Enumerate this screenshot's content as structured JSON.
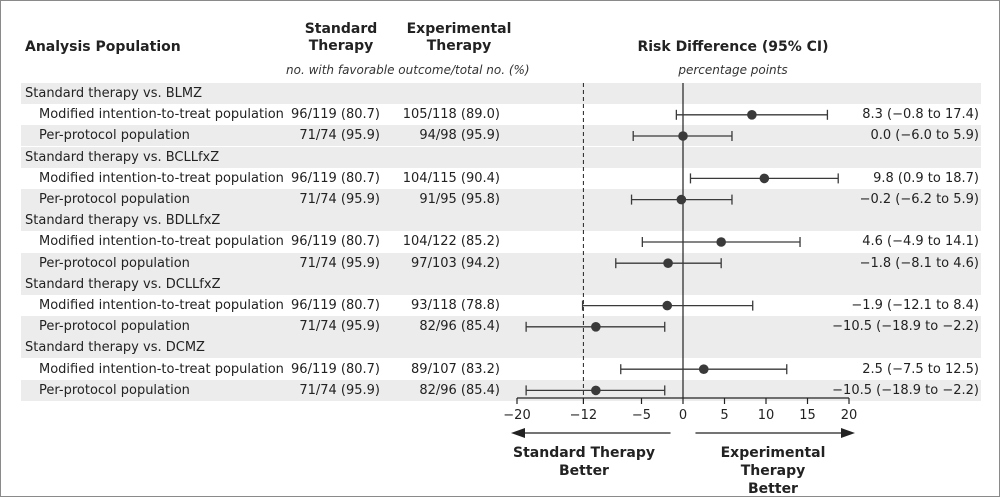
{
  "header": {
    "analysis_population": "Analysis Population",
    "standard_line1": "Standard",
    "standard_line2": "Therapy",
    "experimental_line1": "Experimental",
    "experimental_line2": "Therapy",
    "counts_note": "no. with favorable outcome/total no. (%)",
    "risk_diff_title": "Risk Difference (95% CI)",
    "risk_diff_units": "percentage points"
  },
  "footer": {
    "left_line1": "Standard Therapy",
    "left_line2": "Better",
    "right_line1": "Experimental Therapy",
    "right_line2": "Better"
  },
  "groups": [
    {
      "label": "Standard therapy vs. BLMZ",
      "rows": [
        {
          "label": "Modified intention-to-treat population",
          "standard": "96/119 (80.7)",
          "experimental": "105/118 (89.0)",
          "ci_text": "8.3 (−0.8 to 17.4)"
        },
        {
          "label": "Per-protocol population",
          "standard": "71/74 (95.9)",
          "experimental": "94/98 (95.9)",
          "ci_text": "0.0 (−6.0 to 5.9)"
        }
      ]
    },
    {
      "label": "Standard therapy vs. BCLLfxZ",
      "rows": [
        {
          "label": "Modified intention-to-treat population",
          "standard": "96/119 (80.7)",
          "experimental": "104/115 (90.4)",
          "ci_text": "9.8 (0.9 to 18.7)"
        },
        {
          "label": "Per-protocol population",
          "standard": "71/74 (95.9)",
          "experimental": "91/95 (95.8)",
          "ci_text": "−0.2 (−6.2 to 5.9)"
        }
      ]
    },
    {
      "label": "Standard therapy vs. BDLLfxZ",
      "rows": [
        {
          "label": "Modified intention-to-treat population",
          "standard": "96/119 (80.7)",
          "experimental": "104/122 (85.2)",
          "ci_text": "4.6 (−4.9 to 14.1)"
        },
        {
          "label": "Per-protocol population",
          "standard": "71/74 (95.9)",
          "experimental": "97/103 (94.2)",
          "ci_text": "−1.8 (−8.1 to 4.6)"
        }
      ]
    },
    {
      "label": "Standard therapy vs. DCLLfxZ",
      "rows": [
        {
          "label": "Modified intention-to-treat population",
          "standard": "96/119 (80.7)",
          "experimental": "93/118 (78.8)",
          "ci_text": "−1.9 (−12.1 to 8.4)"
        },
        {
          "label": "Per-protocol population",
          "standard": "71/74 (95.9)",
          "experimental": "82/96 (85.4)",
          "ci_text": "−10.5 (−18.9 to −2.2)"
        }
      ]
    },
    {
      "label": "Standard therapy vs. DCMZ",
      "rows": [
        {
          "label": "Modified intention-to-treat population",
          "standard": "96/119 (80.7)",
          "experimental": "89/107 (83.2)",
          "ci_text": "2.5 (−7.5 to 12.5)"
        },
        {
          "label": "Per-protocol population",
          "standard": "71/74 (95.9)",
          "experimental": "82/96 (85.4)",
          "ci_text": "−10.5 (−18.9 to −2.2)"
        }
      ]
    }
  ],
  "chart_data": {
    "type": "forest",
    "title": "Risk Difference (95% CI)",
    "xlabel": "percentage points",
    "xlim": [
      -20,
      20
    ],
    "ticks": [
      -20,
      -12,
      -5,
      0,
      5,
      10,
      15,
      20
    ],
    "tick_labels": [
      "−20",
      "−12",
      "−5",
      "0",
      "5",
      "10",
      "15",
      "20"
    ],
    "null_line": 0,
    "noninferiority_margin": -12,
    "series": [
      {
        "name": "BLMZ mITT",
        "estimate": 8.3,
        "lower": -0.8,
        "upper": 17.4
      },
      {
        "name": "BLMZ per-protocol",
        "estimate": 0.0,
        "lower": -6.0,
        "upper": 5.9
      },
      {
        "name": "BCLLfxZ mITT",
        "estimate": 9.8,
        "lower": 0.9,
        "upper": 18.7
      },
      {
        "name": "BCLLfxZ per-protocol",
        "estimate": -0.2,
        "lower": -6.2,
        "upper": 5.9
      },
      {
        "name": "BDLLfxZ mITT",
        "estimate": 4.6,
        "lower": -4.9,
        "upper": 14.1
      },
      {
        "name": "BDLLfxZ per-protocol",
        "estimate": -1.8,
        "lower": -8.1,
        "upper": 4.6
      },
      {
        "name": "DCLLfxZ mITT",
        "estimate": -1.9,
        "lower": -12.1,
        "upper": 8.4
      },
      {
        "name": "DCLLfxZ per-protocol",
        "estimate": -10.5,
        "lower": -18.9,
        "upper": -2.2
      },
      {
        "name": "DCMZ mITT",
        "estimate": 2.5,
        "lower": -7.5,
        "upper": 12.5
      },
      {
        "name": "DCMZ per-protocol",
        "estimate": -10.5,
        "lower": -18.9,
        "upper": -2.2
      }
    ]
  },
  "colors": {
    "band": "#ececec",
    "ink": "#222222",
    "marker": "#3a3a3a",
    "frame": "#8a8a8a"
  }
}
